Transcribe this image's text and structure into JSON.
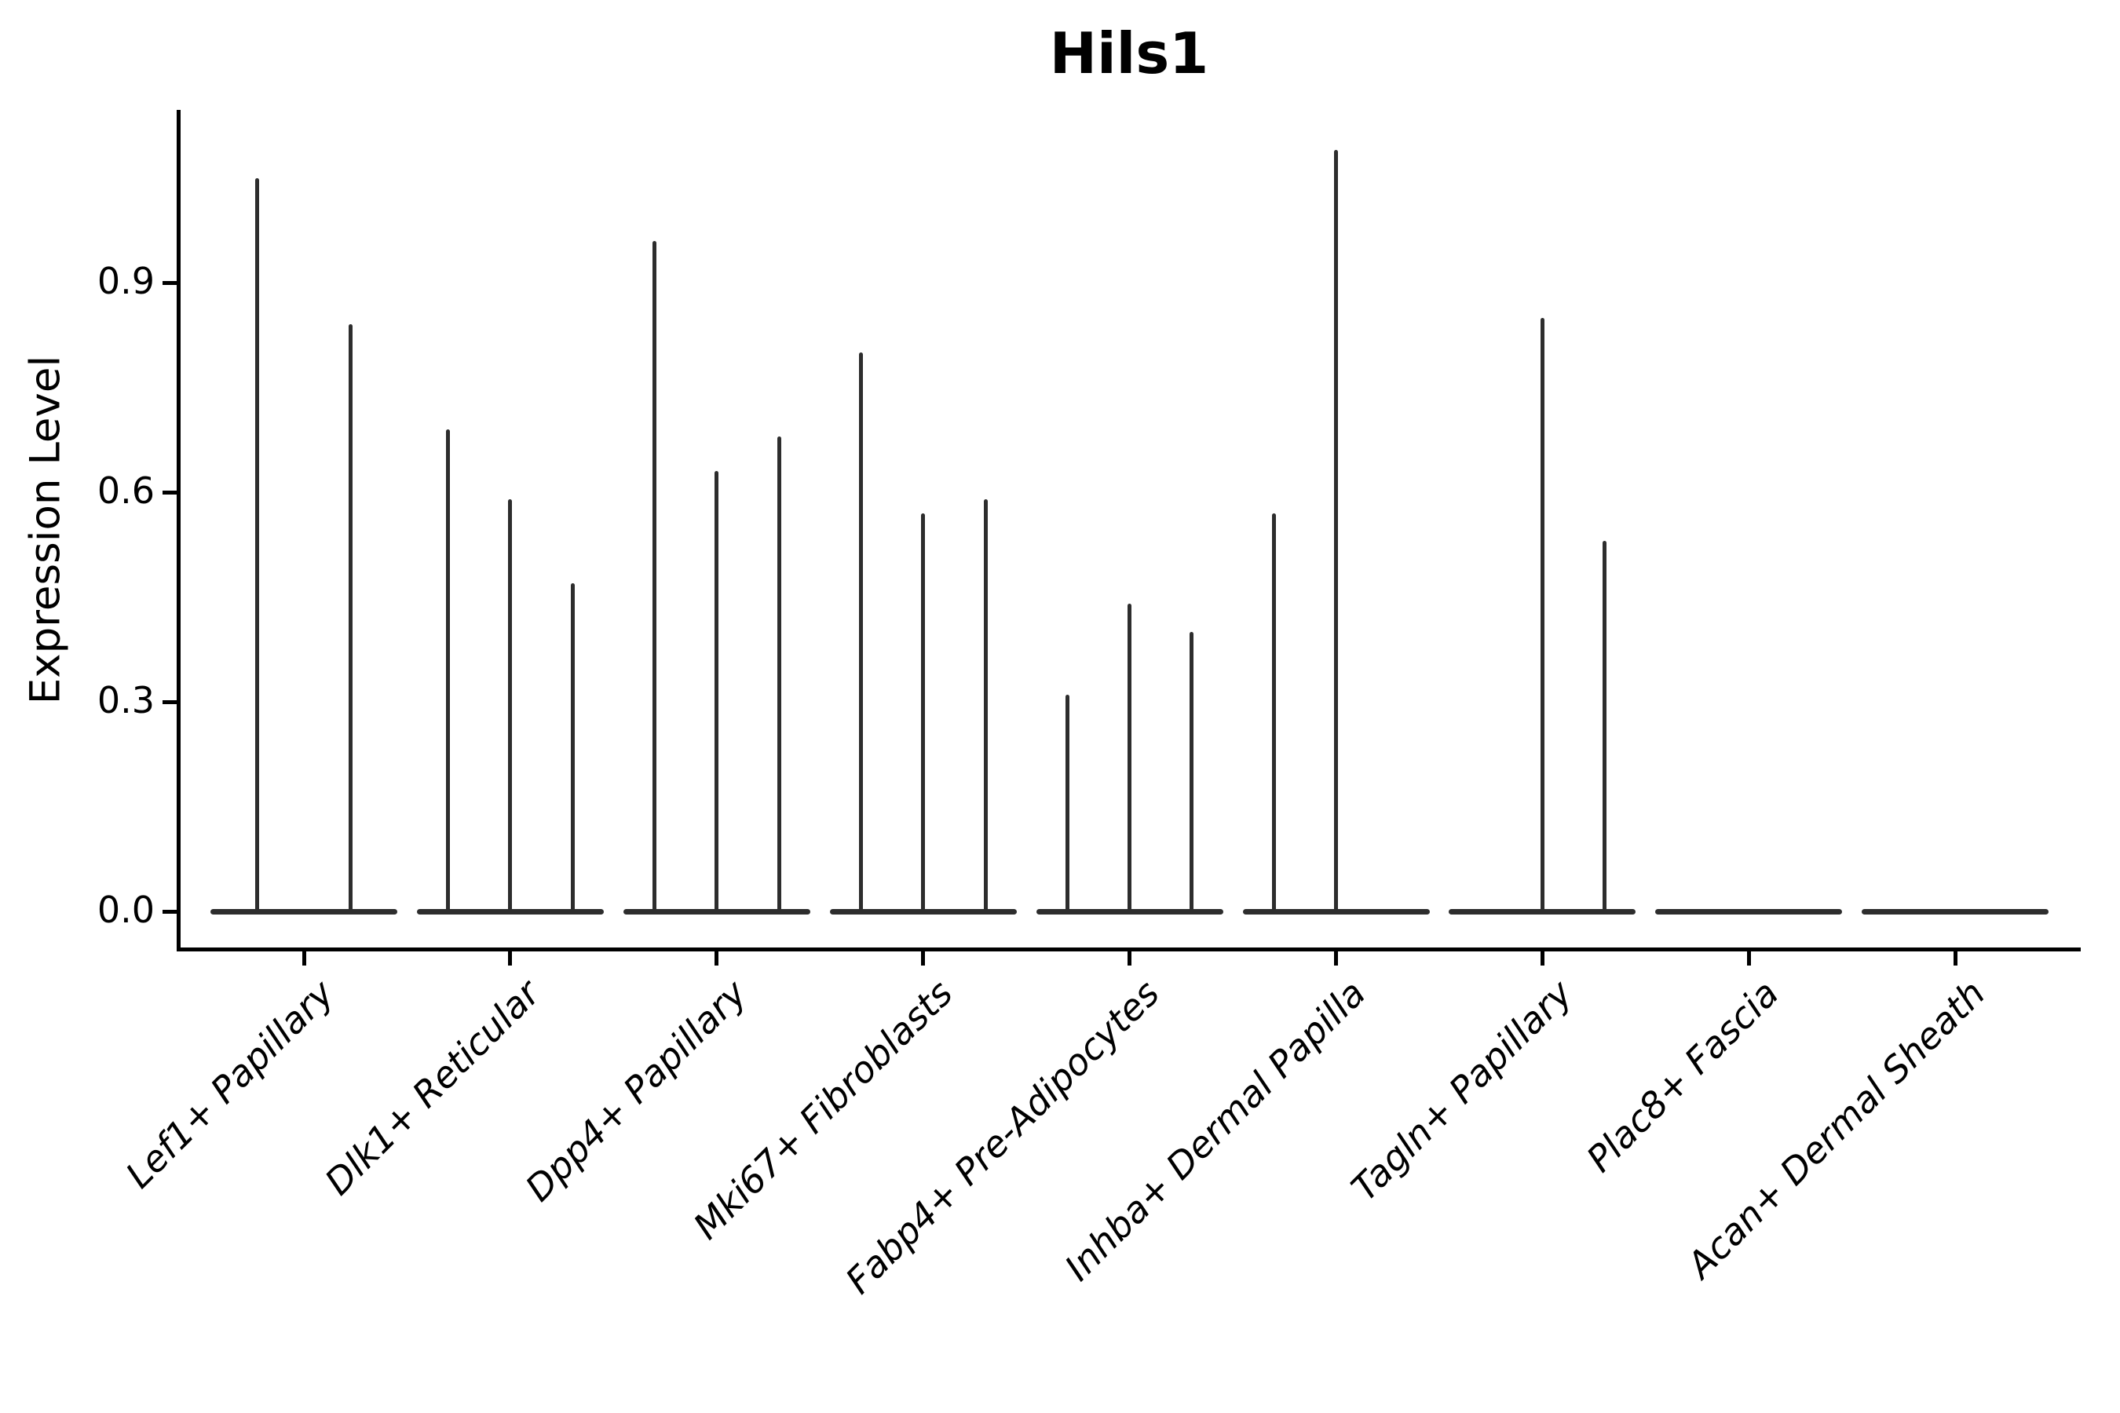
{
  "title": "Hils1",
  "y_axis": {
    "label": "Expression Level",
    "tick_labels": [
      "0.0",
      "0.3",
      "0.6",
      "0.9"
    ],
    "tick_values": [
      0,
      0.3,
      0.6,
      0.9
    ]
  },
  "colors": {
    "axis": "#000000",
    "text": "#000000",
    "violin": "#2d2d2d",
    "background": "#ffffff"
  },
  "chart_data": {
    "type": "violin",
    "title": "Hils1",
    "xlabel": "",
    "ylabel": "Expression Level",
    "ylim": [
      -0.055,
      1.15
    ],
    "yticks": [
      0,
      0.3,
      0.6,
      0.9
    ],
    "grid": false,
    "legend": "none",
    "categories": [
      "Lef1+ Papillary",
      "Dlk1+ Reticular",
      "Dpp4+ Papillary",
      "Mki67+ Fibroblasts",
      "Fabp4+ Pre-Adipocytes",
      "Inhba+ Dermal Papilla",
      "Tagln+ Papillary",
      "Plac8+ Fascia",
      "Acan+ Dermal Sheath"
    ],
    "description": "Needle-thin violins collapsed at 0; each category holds 2-3 violins whose spikes reach the listed maximum expression value. Zero means a flat violin with no spike.",
    "groups": [
      {
        "category": "Lef1+ Papillary",
        "violin_peaks": [
          1.05,
          0.84
        ]
      },
      {
        "category": "Dlk1+ Reticular",
        "violin_peaks": [
          0.69,
          0.59,
          0.47
        ]
      },
      {
        "category": "Dpp4+ Papillary",
        "violin_peaks": [
          0.96,
          0.63,
          0.68
        ]
      },
      {
        "category": "Mki67+ Fibroblasts",
        "violin_peaks": [
          0.8,
          0.57,
          0.59
        ]
      },
      {
        "category": "Fabp4+ Pre-Adipocytes",
        "violin_peaks": [
          0.31,
          0.44,
          0.4
        ]
      },
      {
        "category": "Inhba+ Dermal Papilla",
        "violin_peaks": [
          0.57,
          1.09,
          0
        ]
      },
      {
        "category": "Tagln+ Papillary",
        "violin_peaks": [
          0,
          0.85,
          0.53
        ]
      },
      {
        "category": "Plac8+ Fascia",
        "violin_peaks": [
          0,
          0,
          0
        ]
      },
      {
        "category": "Acan+ Dermal Sheath",
        "violin_peaks": [
          0,
          0,
          0
        ]
      }
    ]
  }
}
